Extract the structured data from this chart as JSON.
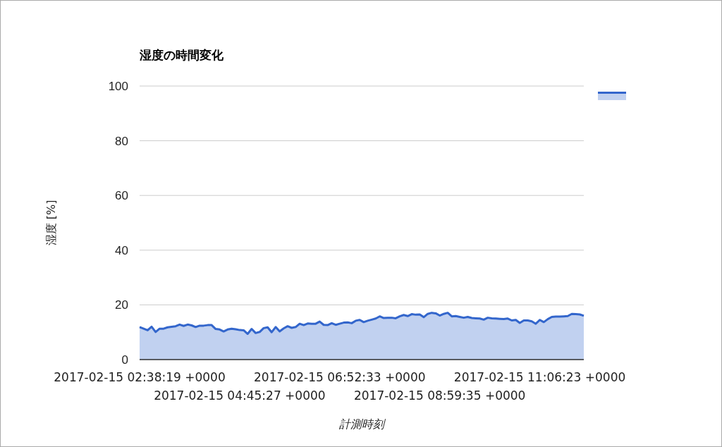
{
  "chart_data": {
    "type": "area",
    "title": "湿度の時間変化",
    "xlabel": "計測時刻",
    "ylabel": "湿度 [%]",
    "categories": [
      "2017-02-15 02:38:19 +0000",
      null,
      null,
      null,
      null,
      null,
      null,
      null,
      null,
      null,
      null,
      null,
      null,
      null,
      null,
      null,
      null,
      null,
      null,
      null,
      null,
      null,
      null,
      null,
      null,
      "2017-02-15 04:45:27 +0000",
      null,
      null,
      null,
      null,
      null,
      null,
      null,
      null,
      null,
      null,
      null,
      null,
      null,
      null,
      null,
      null,
      null,
      null,
      null,
      null,
      null,
      null,
      null,
      null,
      "2017-02-15 06:52:33 +0000",
      null,
      null,
      null,
      null,
      null,
      null,
      null,
      null,
      null,
      null,
      null,
      null,
      null,
      null,
      null,
      null,
      null,
      null,
      null,
      null,
      null,
      null,
      null,
      null,
      "2017-02-15 08:59:35 +0000",
      null,
      null,
      null,
      null,
      null,
      null,
      null,
      null,
      null,
      null,
      null,
      null,
      null,
      null,
      null,
      null,
      null,
      null,
      null,
      null,
      null,
      null,
      null,
      null,
      "2017-02-15 11:06:23 +0000",
      null,
      null,
      null,
      null,
      null,
      null,
      null,
      null,
      null,
      null,
      null
    ],
    "series": [
      {
        "color": "#3366cc",
        "values": [
          11.9,
          11.3,
          10.7,
          12.0,
          10.1,
          11.3,
          11.3,
          11.8,
          12.0,
          12.2,
          12.8,
          12.3,
          12.8,
          12.5,
          11.9,
          12.4,
          12.4,
          12.6,
          12.6,
          11.2,
          11.0,
          10.3,
          11.0,
          11.3,
          11.1,
          10.8,
          10.7,
          9.4,
          11.2,
          9.7,
          10.1,
          11.5,
          11.8,
          10.0,
          11.9,
          10.3,
          11.4,
          12.2,
          11.6,
          11.9,
          13.1,
          12.6,
          13.2,
          13.1,
          13.1,
          13.9,
          12.7,
          12.6,
          13.3,
          12.7,
          13.1,
          13.5,
          13.6,
          13.3,
          14.2,
          14.5,
          13.7,
          14.2,
          14.6,
          15.0,
          15.8,
          15.2,
          15.3,
          15.3,
          15.1,
          15.8,
          16.3,
          15.9,
          16.6,
          16.4,
          16.5,
          15.5,
          16.7,
          17.1,
          16.9,
          16.1,
          16.7,
          17.1,
          15.8,
          15.9,
          15.6,
          15.3,
          15.6,
          15.2,
          15.1,
          15.0,
          14.6,
          15.3,
          15.1,
          15.0,
          14.9,
          14.8,
          15.0,
          14.3,
          14.5,
          13.4,
          14.3,
          14.3,
          14.0,
          13.1,
          14.5,
          13.7,
          14.8,
          15.6,
          15.7,
          15.7,
          15.8,
          15.9,
          16.7,
          16.6,
          16.5,
          16.0
        ]
      }
    ],
    "ylim": [
      0,
      100
    ],
    "yticks": [
      0,
      20,
      40,
      60,
      80,
      100
    ],
    "grid": "y"
  }
}
